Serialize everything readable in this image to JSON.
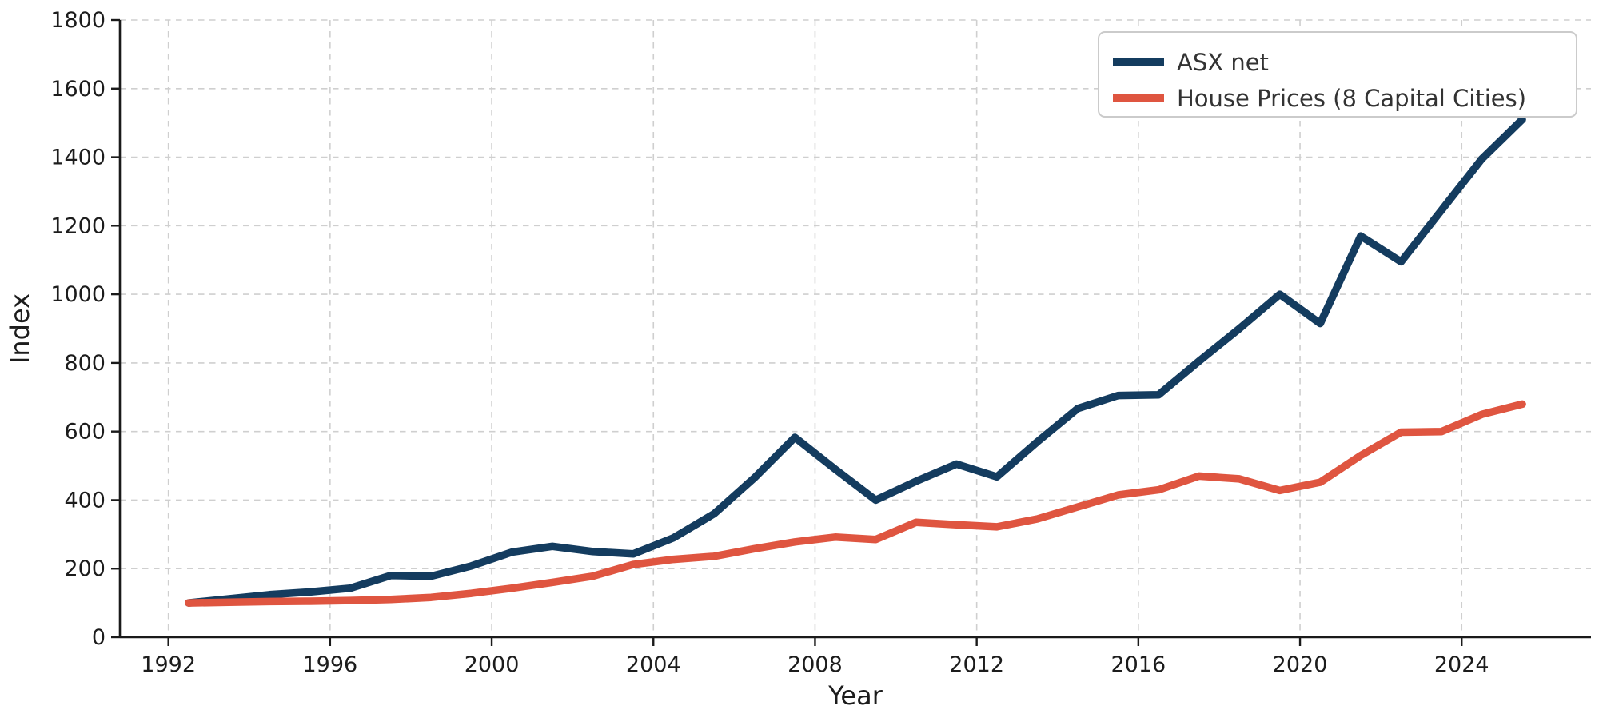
{
  "figure": {
    "background": "#ffffff",
    "text_color": "#1c1c1c",
    "grid_color": "#cfcfcf",
    "spine_color": "#1a1a1a",
    "legend_border_color": "#cbcbcb"
  },
  "chart_data": {
    "type": "line",
    "title": "",
    "xlabel": "Year",
    "ylabel": "Index",
    "xlim": [
      1990.8,
      2027.2
    ],
    "ylim": [
      0,
      1800
    ],
    "xticks": [
      1992,
      1996,
      2000,
      2004,
      2008,
      2012,
      2016,
      2020,
      2024
    ],
    "yticks": [
      0,
      200,
      400,
      600,
      800,
      1000,
      1200,
      1400,
      1600,
      1800
    ],
    "grid": true,
    "grid_style": "dashed",
    "legend_position": "upper right",
    "x": [
      1992.5,
      1993.5,
      1994.5,
      1995.5,
      1996.5,
      1997.5,
      1998.5,
      1999.5,
      2000.5,
      2001.5,
      2002.5,
      2003.5,
      2004.5,
      2005.5,
      2006.5,
      2007.5,
      2008.5,
      2009.5,
      2010.5,
      2011.5,
      2012.5,
      2013.5,
      2014.5,
      2015.5,
      2016.5,
      2017.5,
      2018.5,
      2019.5,
      2020.5,
      2021.5,
      2022.5,
      2023.5,
      2024.5,
      2025.5
    ],
    "series": [
      {
        "name": "ASX net",
        "color": "#143c5f",
        "values": [
          100,
          112,
          124,
          132,
          143,
          180,
          178,
          208,
          248,
          265,
          250,
          243,
          290,
          360,
          465,
          583,
          490,
          400,
          455,
          505,
          468,
          570,
          667,
          705,
          707,
          805,
          900,
          1000,
          915,
          1170,
          1095,
          1245,
          1395,
          1510
        ]
      },
      {
        "name": "House Prices (8 Capital Cities)",
        "color": "#df5540",
        "values": [
          100,
          102,
          104,
          105,
          107,
          110,
          116,
          128,
          143,
          160,
          178,
          212,
          227,
          236,
          258,
          278,
          292,
          285,
          335,
          328,
          322,
          345,
          380,
          415,
          430,
          470,
          462,
          428,
          452,
          530,
          598,
          600,
          650,
          680
        ]
      }
    ]
  }
}
